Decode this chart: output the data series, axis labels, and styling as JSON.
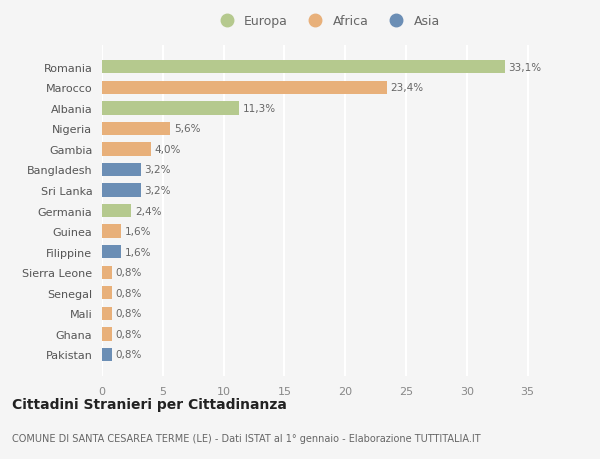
{
  "countries": [
    "Romania",
    "Marocco",
    "Albania",
    "Nigeria",
    "Gambia",
    "Bangladesh",
    "Sri Lanka",
    "Germania",
    "Guinea",
    "Filippine",
    "Sierra Leone",
    "Senegal",
    "Mali",
    "Ghana",
    "Pakistan"
  ],
  "values": [
    33.1,
    23.4,
    11.3,
    5.6,
    4.0,
    3.2,
    3.2,
    2.4,
    1.6,
    1.6,
    0.8,
    0.8,
    0.8,
    0.8,
    0.8
  ],
  "labels": [
    "33,1%",
    "23,4%",
    "11,3%",
    "5,6%",
    "4,0%",
    "3,2%",
    "3,2%",
    "2,4%",
    "1,6%",
    "1,6%",
    "0,8%",
    "0,8%",
    "0,8%",
    "0,8%",
    "0,8%"
  ],
  "continents": [
    "Europa",
    "Africa",
    "Europa",
    "Africa",
    "Africa",
    "Asia",
    "Asia",
    "Europa",
    "Africa",
    "Asia",
    "Africa",
    "Africa",
    "Africa",
    "Africa",
    "Asia"
  ],
  "colors": {
    "Europa": "#b5c98e",
    "Africa": "#e8b07a",
    "Asia": "#6b8eb5"
  },
  "background_color": "#f5f5f5",
  "title": "Cittadini Stranieri per Cittadinanza",
  "subtitle": "COMUNE DI SANTA CESAREA TERME (LE) - Dati ISTAT al 1° gennaio - Elaborazione TUTTITALIA.IT",
  "xlim": [
    0,
    37
  ],
  "xticks": [
    0,
    5,
    10,
    15,
    20,
    25,
    30,
    35
  ]
}
